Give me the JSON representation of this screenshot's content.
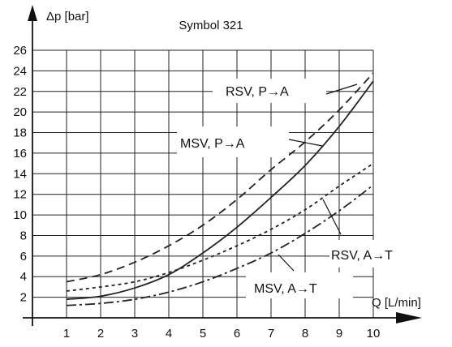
{
  "chart_data": {
    "type": "line",
    "title": "Symbol 321",
    "xlabel": "Q [L/min]",
    "ylabel": "Δp [bar]",
    "xlim": [
      0,
      10
    ],
    "ylim": [
      0,
      26
    ],
    "x_ticks": [
      1,
      2,
      3,
      4,
      5,
      6,
      7,
      8,
      9,
      10
    ],
    "y_ticks": [
      2,
      4,
      6,
      8,
      10,
      12,
      14,
      16,
      18,
      20,
      22,
      24,
      26
    ],
    "grid": true,
    "x": [
      1,
      2,
      3,
      4,
      5,
      6,
      7,
      8,
      9,
      10
    ],
    "series": [
      {
        "name": "RSV, P→A",
        "style": "dashed",
        "values": [
          3.5,
          4.2,
          5.4,
          7.0,
          9.0,
          11.5,
          14.4,
          17.1,
          20.2,
          23.8
        ]
      },
      {
        "name": "MSV, P→A",
        "style": "solid",
        "values": [
          1.8,
          2.1,
          2.9,
          4.2,
          6.3,
          8.8,
          11.7,
          14.8,
          18.6,
          23.0
        ]
      },
      {
        "name": "RSV, A→T",
        "style": "dotted",
        "values": [
          2.6,
          3.0,
          3.5,
          4.4,
          5.6,
          7.0,
          8.6,
          10.5,
          12.8,
          15.0
        ]
      },
      {
        "name": "MSV, A→T",
        "style": "dash-dot",
        "values": [
          1.2,
          1.4,
          1.8,
          2.5,
          3.5,
          4.8,
          6.3,
          8.2,
          10.4,
          12.9
        ]
      }
    ],
    "colors": {
      "line": "#222222",
      "grid": "#222222",
      "label_box": "#ffffff"
    }
  }
}
